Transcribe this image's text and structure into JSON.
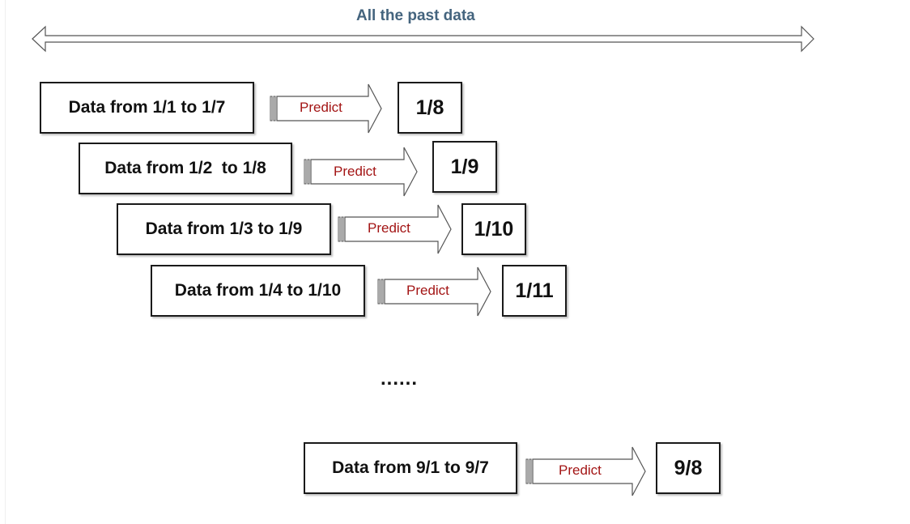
{
  "diagram": {
    "title": "All the past data",
    "ellipsis": "......",
    "rows": [
      {
        "data_label": "Data from 1/1 to 1/7",
        "predict_label": "Predict",
        "result_label": "1/8"
      },
      {
        "data_label": "Data from 1/2  to 1/8",
        "predict_label": "Predict",
        "result_label": "1/9"
      },
      {
        "data_label": "Data from 1/3 to 1/9",
        "predict_label": "Predict",
        "result_label": "1/10"
      },
      {
        "data_label": "Data from 1/4 to 1/10",
        "predict_label": "Predict",
        "result_label": "1/11"
      },
      {
        "data_label": "Data from 9/1 to 9/7",
        "predict_label": "Predict",
        "result_label": "9/8"
      }
    ]
  },
  "colors": {
    "title": "#44647e",
    "predict_text": "#a31515",
    "box_border": "#1a1a1a",
    "arrow_stroke": "#555555"
  }
}
